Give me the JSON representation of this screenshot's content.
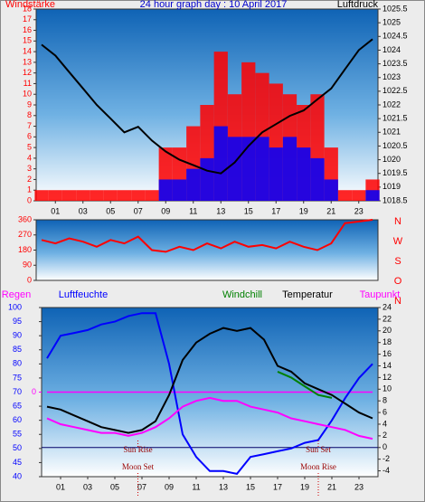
{
  "chart_data": [
    {
      "type": "line",
      "title": "24 hour graph day : 10 April 2017",
      "ylabel": "Windstärke",
      "y2label": "Luftdruck",
      "x": [
        0,
        1,
        2,
        3,
        4,
        5,
        6,
        7,
        8,
        9,
        10,
        11,
        12,
        13,
        14,
        15,
        16,
        17,
        18,
        19,
        20,
        21,
        22,
        23,
        24
      ],
      "xlim": [
        0,
        24
      ],
      "xticks": [
        {
          "value": 1,
          "label": "01"
        },
        {
          "value": 3,
          "label": "03"
        },
        {
          "value": 5,
          "label": "05"
        },
        {
          "value": 7,
          "label": "07"
        },
        {
          "value": 9,
          "label": "09"
        },
        {
          "value": 11,
          "label": "11"
        },
        {
          "value": 13,
          "label": "13"
        },
        {
          "value": 15,
          "label": "15"
        },
        {
          "value": 17,
          "label": "17"
        },
        {
          "value": 19,
          "label": "19"
        },
        {
          "value": 21,
          "label": "21"
        },
        {
          "value": 23,
          "label": "23"
        }
      ],
      "ylim": [
        0,
        18
      ],
      "yticks": [
        0,
        1,
        2,
        3,
        4,
        5,
        6,
        7,
        8,
        9,
        10,
        11,
        12,
        13,
        14,
        15,
        16,
        17,
        18
      ],
      "y2lim": [
        1018.5,
        1025.5
      ],
      "y2ticks": [
        1018.5,
        1019,
        1019.5,
        1020,
        1020.5,
        1021,
        1021.5,
        1022,
        1022.5,
        1023,
        1023.5,
        1024,
        1024.5,
        1025,
        1025.5
      ],
      "series": [
        {
          "type": "bar",
          "color": "#ff0000",
          "values": [
            1,
            1,
            1,
            1,
            1,
            1,
            1,
            1,
            1,
            5,
            5,
            7,
            9,
            14,
            10,
            13,
            12,
            11,
            10,
            9,
            10,
            5,
            1,
            1,
            2
          ]
        },
        {
          "type": "bar",
          "color": "#0000ff",
          "values": [
            0,
            0,
            0,
            0,
            0,
            0,
            0,
            0,
            0,
            2,
            2,
            3,
            4,
            7,
            6,
            6,
            6,
            5,
            6,
            5,
            4,
            2,
            0,
            0,
            1
          ]
        },
        {
          "type": "line",
          "axis": "y2",
          "color": "#000000",
          "values": [
            1024.2,
            1023.8,
            1023.2,
            1022.6,
            1022,
            1021.5,
            1021,
            1021.2,
            1020.7,
            1020.3,
            1020,
            1019.8,
            1019.6,
            1019.5,
            1019.9,
            1020.5,
            1021,
            1021.3,
            1021.6,
            1021.8,
            1022.2,
            1022.6,
            1023.3,
            1024,
            1024.4
          ]
        }
      ]
    },
    {
      "type": "line",
      "x": [
        0,
        1,
        2,
        3,
        4,
        5,
        6,
        7,
        8,
        9,
        10,
        11,
        12,
        13,
        14,
        15,
        16,
        17,
        18,
        19,
        20,
        21,
        22,
        23,
        24
      ],
      "xlim": [
        0,
        24
      ],
      "ylim": [
        0,
        360
      ],
      "yticks": [
        0,
        90,
        180,
        270,
        360
      ],
      "direction_labels": [
        "N",
        "W",
        "S",
        "O",
        "N"
      ],
      "series": [
        {
          "type": "line",
          "color": "#ff0000",
          "values": [
            240,
            220,
            250,
            230,
            200,
            240,
            220,
            260,
            180,
            170,
            200,
            180,
            220,
            190,
            230,
            200,
            210,
            190,
            230,
            200,
            180,
            220,
            340,
            350,
            360
          ]
        }
      ]
    },
    {
      "type": "line",
      "x": [
        0,
        1,
        2,
        3,
        4,
        5,
        6,
        7,
        8,
        9,
        10,
        11,
        12,
        13,
        14,
        15,
        16,
        17,
        18,
        19,
        20,
        21,
        22,
        23,
        24
      ],
      "xlim": [
        0,
        24
      ],
      "xticks": [
        {
          "value": 1,
          "label": "01"
        },
        {
          "value": 3,
          "label": "03"
        },
        {
          "value": 5,
          "label": "05"
        },
        {
          "value": 7,
          "label": "07"
        },
        {
          "value": 9,
          "label": "09"
        },
        {
          "value": 11,
          "label": "11"
        },
        {
          "value": 13,
          "label": "13"
        },
        {
          "value": 15,
          "label": "15"
        },
        {
          "value": 17,
          "label": "17"
        },
        {
          "value": 19,
          "label": "19"
        },
        {
          "value": 21,
          "label": "21"
        },
        {
          "value": 23,
          "label": "23"
        }
      ],
      "ylim": [
        40,
        100
      ],
      "yticks": [
        40,
        45,
        50,
        55,
        60,
        65,
        70,
        75,
        80,
        85,
        90,
        95,
        100
      ],
      "y2lim": [
        -5,
        24
      ],
      "y2ticks": [
        -4,
        -2,
        0,
        2,
        4,
        6,
        8,
        10,
        12,
        14,
        16,
        18,
        20,
        22,
        24
      ],
      "y3lim": [
        -1,
        1
      ],
      "y3ticks": [
        0
      ],
      "zero_line": true,
      "series": [
        {
          "name": "Regen",
          "type": "line",
          "axis": "y3",
          "color": "#ff00ff",
          "values": [
            0,
            0,
            0,
            0,
            0,
            0,
            0,
            0,
            0,
            0,
            0,
            0,
            0,
            0,
            0,
            0,
            0,
            0,
            0,
            0,
            0,
            0,
            0,
            0,
            0
          ]
        },
        {
          "name": "Luftfeuchte",
          "type": "line",
          "color": "#0000ff",
          "values": [
            82,
            90,
            91,
            92,
            94,
            95,
            97,
            98,
            98,
            80,
            55,
            47,
            42,
            42,
            41,
            47,
            48,
            49,
            50,
            52,
            53,
            60,
            68,
            75,
            80
          ]
        },
        {
          "name": "Windchill",
          "type": "line",
          "axis": "y2",
          "color": "#008000",
          "values": [
            null,
            null,
            null,
            null,
            null,
            null,
            null,
            null,
            null,
            null,
            null,
            null,
            null,
            null,
            null,
            null,
            null,
            13,
            12,
            10.5,
            9,
            8.5,
            null,
            null,
            null
          ]
        },
        {
          "name": "Temperatur",
          "type": "line",
          "axis": "y2",
          "color": "#000000",
          "values": [
            7,
            6.5,
            5.5,
            4.5,
            3.5,
            3,
            2.5,
            3,
            4.5,
            9,
            15,
            18,
            19.5,
            20.5,
            20,
            20.5,
            18.5,
            14,
            13,
            11,
            10,
            9,
            7.5,
            6,
            5
          ]
        },
        {
          "name": "Taupunkt",
          "type": "line",
          "axis": "y2",
          "color": "#ff00ff",
          "values": [
            5,
            4,
            3.5,
            3,
            2.5,
            2.5,
            2,
            2.5,
            3.5,
            5,
            7,
            8,
            8.5,
            8,
            8,
            7,
            6.5,
            6,
            5,
            4.5,
            4,
            3.5,
            3,
            2,
            1.5
          ]
        }
      ],
      "annotations": [
        {
          "text": "Sun Rise",
          "x": 6.7
        },
        {
          "text": "Sun Set",
          "x": 20
        },
        {
          "text": "Moon Set",
          "x": 6.7
        },
        {
          "text": "Moon Rise",
          "x": 20
        }
      ]
    }
  ]
}
